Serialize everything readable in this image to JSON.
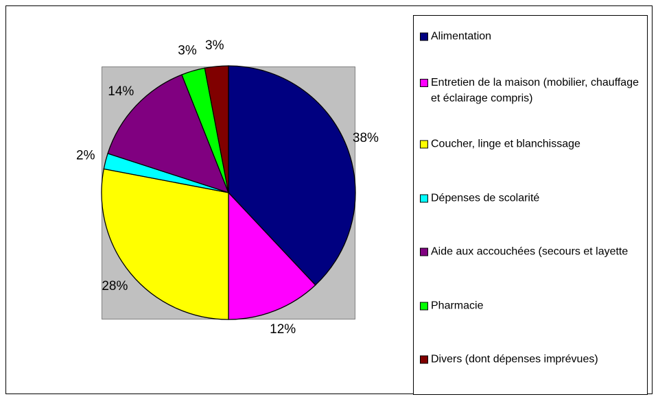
{
  "chart_data": {
    "type": "pie",
    "categories": [
      "Alimentation",
      "Entretien de la maison (mobilier, chauffage et éclairage compris)",
      "Coucher, linge et blanchissage",
      "Dépenses de scolarité",
      "Aide aux accouchées (secours et layette",
      "Pharmacie",
      "Divers (dont dépenses imprévues)"
    ],
    "values": [
      38,
      12,
      28,
      2,
      14,
      3,
      3
    ],
    "value_labels": [
      "38%",
      "12%",
      "28%",
      "2%",
      "14%",
      "3%",
      "3%"
    ],
    "colors": [
      "#000080",
      "#ff00ff",
      "#ffff00",
      "#00ffff",
      "#800080",
      "#00ff00",
      "#800000"
    ],
    "legend": "right"
  }
}
